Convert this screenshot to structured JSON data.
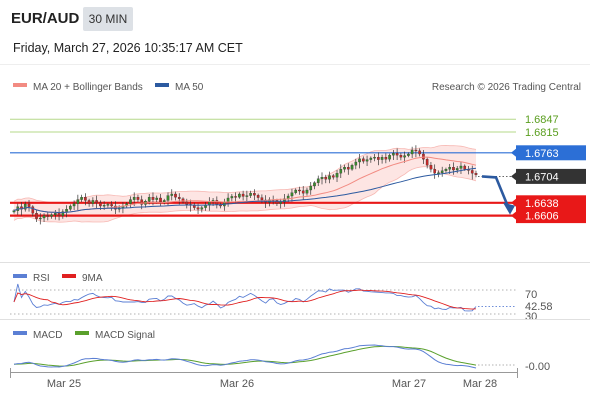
{
  "header": {
    "pair": "EUR/AUD",
    "timeframe": "30 MIN",
    "timestamp": "Friday, March 27, 2026 10:35:17 AM CET"
  },
  "main_legend": [
    {
      "label": "MA 20 + Bollinger Bands",
      "color": "#f28b82"
    },
    {
      "label": "MA 50",
      "color": "#2c5aa0"
    }
  ],
  "copyright": "Research © 2026 Trading Central",
  "rsi_legend": [
    {
      "label": "RSI",
      "color": "#5b7fd4"
    },
    {
      "label": "9MA",
      "color": "#e02020"
    }
  ],
  "macd_legend": [
    {
      "label": "MACD",
      "color": "#5b7fd4"
    },
    {
      "label": "MACD Signal",
      "color": "#5aa02c"
    }
  ],
  "chart_data": [
    {
      "type": "candlestick",
      "name": "price",
      "ylim": [
        1.652,
        1.6895
      ],
      "x_tick_labels": [
        "Mar 25",
        "Mar 26",
        "Mar 27",
        "Mar 28"
      ],
      "levels": [
        {
          "value": 1.6847,
          "label": "1.6847",
          "style": "thin-green"
        },
        {
          "value": 1.6815,
          "label": "1.6815",
          "style": "thin-green"
        },
        {
          "value": 1.6763,
          "label": "1.6763",
          "style": "blue"
        },
        {
          "value": 1.6704,
          "label": "1.6704",
          "style": "current"
        },
        {
          "value": 1.6638,
          "label": "1.6638",
          "style": "red"
        },
        {
          "value": 1.6606,
          "label": "1.6606",
          "style": "red"
        }
      ],
      "close": [
        1.6618,
        1.6628,
        1.6622,
        1.6635,
        1.6628,
        1.6612,
        1.6598,
        1.66,
        1.6606,
        1.6604,
        1.6608,
        1.6612,
        1.6606,
        1.6616,
        1.6622,
        1.663,
        1.6636,
        1.6646,
        1.6652,
        1.6644,
        1.6636,
        1.6644,
        1.6638,
        1.663,
        1.6632,
        1.6634,
        1.663,
        1.6622,
        1.6626,
        1.663,
        1.6636,
        1.6646,
        1.6652,
        1.6646,
        1.6634,
        1.6642,
        1.6652,
        1.6646,
        1.665,
        1.664,
        1.6644,
        1.6656,
        1.666,
        1.6652,
        1.6648,
        1.664,
        1.6634,
        1.6632,
        1.6626,
        1.6622,
        1.6626,
        1.6632,
        1.664,
        1.6644,
        1.6634,
        1.663,
        1.664,
        1.665,
        1.6654,
        1.6652,
        1.666,
        1.6654,
        1.6656,
        1.6662,
        1.6657,
        1.6651,
        1.6645,
        1.6639,
        1.6646,
        1.6644,
        1.6636,
        1.664,
        1.6648,
        1.6655,
        1.6663,
        1.667,
        1.6668,
        1.6662,
        1.667,
        1.668,
        1.6688,
        1.6698,
        1.6702,
        1.6697,
        1.6706,
        1.6702,
        1.6712,
        1.6722,
        1.6727,
        1.6722,
        1.6732,
        1.674,
        1.6748,
        1.6742,
        1.6746,
        1.675,
        1.6752,
        1.6746,
        1.6752,
        1.6747,
        1.6757,
        1.6762,
        1.6757,
        1.6752,
        1.6756,
        1.676,
        1.677,
        1.6768,
        1.676,
        1.6747,
        1.6732,
        1.6722,
        1.6712,
        1.6713,
        1.6718,
        1.6722,
        1.6727,
        1.672,
        1.6724,
        1.673,
        1.6722,
        1.6719,
        1.6712,
        1.6708
      ],
      "indicators": [
        "MA 20 + Bollinger Bands",
        "MA 50"
      ]
    },
    {
      "type": "line",
      "name": "rsi",
      "ylim": [
        30,
        75
      ],
      "y_tick_labels": [
        "70",
        "42.58",
        "30"
      ],
      "series": [
        "RSI",
        "9MA"
      ],
      "last_value": 42.58
    },
    {
      "type": "line",
      "name": "macd",
      "y_tick_labels": [
        "-0.00"
      ],
      "series": [
        "MACD",
        "MACD Signal"
      ]
    }
  ]
}
